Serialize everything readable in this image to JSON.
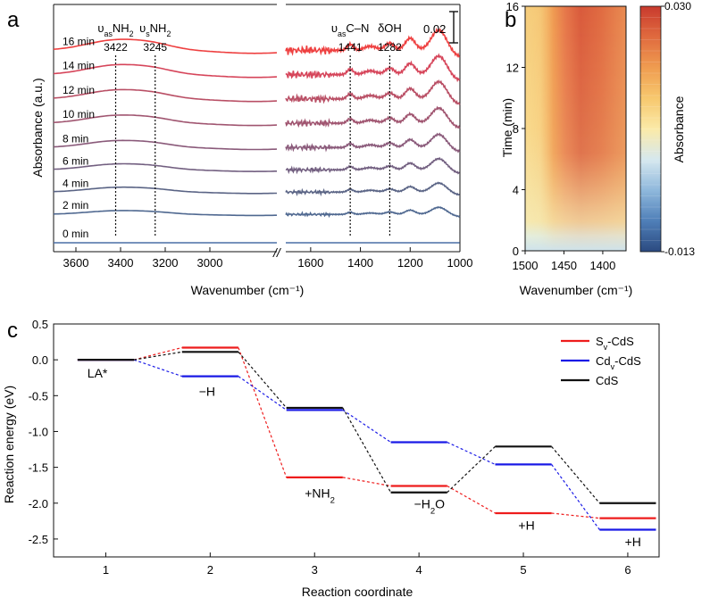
{
  "chart_data": [
    {
      "panel": "a",
      "type": "line",
      "panel_label": "a",
      "xlabel": "Wavenumber (cm⁻¹)",
      "ylabel": "Absorbance (a.u.)",
      "x_segments": [
        {
          "xlim": [
            3700,
            2700
          ],
          "ticks": [
            3600,
            3400,
            3200,
            3000
          ],
          "tick_labels": [
            "3600",
            "3400",
            "3200",
            "3000"
          ]
        },
        {
          "xlim": [
            1700,
            1000
          ],
          "ticks": [
            1600,
            1400,
            1200,
            1000
          ],
          "tick_labels": [
            "1600",
            "1400",
            "1200",
            "1000"
          ]
        }
      ],
      "axis_break": "//",
      "scale_bar": {
        "value": 0.02,
        "label": "0.02"
      },
      "series": [
        {
          "name": "0 min",
          "label": "0 min",
          "color": "#4a6fa5",
          "offset": 0.0,
          "bump": 0.0
        },
        {
          "name": "2 min",
          "label": "2 min",
          "color": "#4f6890",
          "offset": 0.028,
          "bump": 0.35
        },
        {
          "name": "4 min",
          "label": "4 min",
          "color": "#5a6485",
          "offset": 0.05,
          "bump": 0.45
        },
        {
          "name": "6 min",
          "label": "6 min",
          "color": "#725f80",
          "offset": 0.072,
          "bump": 0.55
        },
        {
          "name": "8 min",
          "label": "8 min",
          "color": "#8a5a7a",
          "offset": 0.094,
          "bump": 0.65
        },
        {
          "name": "10 min",
          "label": "10 min",
          "color": "#a05570",
          "offset": 0.118,
          "bump": 0.75
        },
        {
          "name": "12 min",
          "label": "12 min",
          "color": "#b94f65",
          "offset": 0.142,
          "bump": 0.85
        },
        {
          "name": "14 min",
          "label": "14 min",
          "color": "#d6455a",
          "offset": 0.166,
          "bump": 0.92
        },
        {
          "name": "16 min",
          "label": "16 min",
          "color": "#ee4040",
          "offset": 0.19,
          "bump": 1.0
        }
      ],
      "annotations": [
        {
          "name": "vas-nh2",
          "main": "υ",
          "sub": "as",
          "rest": "NH",
          "sub2": "2",
          "value": 3422,
          "value_label": "3422"
        },
        {
          "name": "vs-nh2",
          "main": "υ",
          "sub": "s",
          "rest": "NH",
          "sub2": "2",
          "value": 3245,
          "value_label": "3245"
        },
        {
          "name": "vas-cn",
          "main": "υ",
          "sub": "as",
          "rest": "C–N",
          "sub2": "",
          "value": 1441,
          "value_label": "1441"
        },
        {
          "name": "delta-oh",
          "main": "δOH",
          "sub": "",
          "rest": "",
          "sub2": "",
          "value": 1282,
          "value_label": "1282"
        }
      ]
    },
    {
      "panel": "b",
      "type": "heatmap",
      "panel_label": "b",
      "xlabel": "Wavenumber (cm⁻¹)",
      "ylabel": "Time (min)",
      "colorbar_label": "Absorbance",
      "xlim": [
        1500,
        1370
      ],
      "xticks": [
        1500,
        1450,
        1400
      ],
      "xtick_labels": [
        "1500",
        "1450",
        "1400"
      ],
      "ylim": [
        0,
        16
      ],
      "yticks": [
        0,
        4,
        8,
        12,
        16
      ],
      "ytick_labels": [
        "0",
        "4",
        "8",
        "12",
        "16"
      ],
      "colorbar_range": [
        -0.013,
        0.03
      ],
      "colorbar_ticks": [
        "0.030",
        "-0.013"
      ],
      "colormap": [
        "#2b4a80",
        "#4f7fb8",
        "#8fb8dc",
        "#d6e8ef",
        "#fbeaa8",
        "#f7c86e",
        "#ef9c50",
        "#e06a3e",
        "#c83a2e"
      ]
    },
    {
      "panel": "c",
      "type": "line",
      "panel_label": "c",
      "xlabel": "Reaction coordinate",
      "ylabel": "Reaction energy (eV)",
      "xlim": [
        0.5,
        6.3
      ],
      "ylim": [
        -2.75,
        0.5
      ],
      "xticks": [
        1,
        2,
        3,
        4,
        5,
        6
      ],
      "xtick_labels": [
        "1",
        "2",
        "3",
        "4",
        "5",
        "6"
      ],
      "yticks": [
        0.5,
        0.0,
        -0.5,
        -1.0,
        -1.5,
        -2.0,
        -2.5
      ],
      "ytick_labels": [
        "0.5",
        "0.0",
        "-0.5",
        "-1.0",
        "-1.5",
        "-2.0",
        "-2.5"
      ],
      "series": [
        {
          "name": "Sv-CdS",
          "legend_main": "S",
          "legend_sub": "v",
          "legend_rest": "-CdS",
          "color": "#ee1c1c",
          "x": [
            1,
            2,
            3,
            4,
            5,
            6
          ],
          "values": [
            0.0,
            0.17,
            -1.64,
            -1.76,
            -2.14,
            -2.21
          ]
        },
        {
          "name": "Cdv-CdS",
          "legend_main": "Cd",
          "legend_sub": "v",
          "legend_rest": "-CdS",
          "color": "#1a1ae6",
          "x": [
            1,
            2,
            3,
            4,
            5,
            6
          ],
          "values": [
            0.0,
            -0.23,
            -0.7,
            -1.15,
            -1.46,
            -2.37
          ]
        },
        {
          "name": "CdS",
          "legend_main": "CdS",
          "legend_sub": "",
          "legend_rest": "",
          "color": "#111111",
          "x": [
            1,
            2,
            3,
            4,
            5,
            6
          ],
          "values": [
            0.0,
            0.11,
            -0.67,
            -1.85,
            -1.21,
            -2.0
          ]
        }
      ],
      "step_labels": [
        {
          "name": "la",
          "main": "LA*",
          "sub": "",
          "rest": ""
        },
        {
          "name": "h1",
          "main": "−H",
          "sub": "",
          "rest": ""
        },
        {
          "name": "nh2",
          "main": "+NH",
          "sub": "2",
          "rest": ""
        },
        {
          "name": "h2o",
          "main": "−H",
          "sub": "2",
          "rest": "O"
        },
        {
          "name": "h2",
          "main": "+H",
          "sub": "",
          "rest": ""
        },
        {
          "name": "h3",
          "main": "+H",
          "sub": "",
          "rest": ""
        }
      ]
    }
  ]
}
